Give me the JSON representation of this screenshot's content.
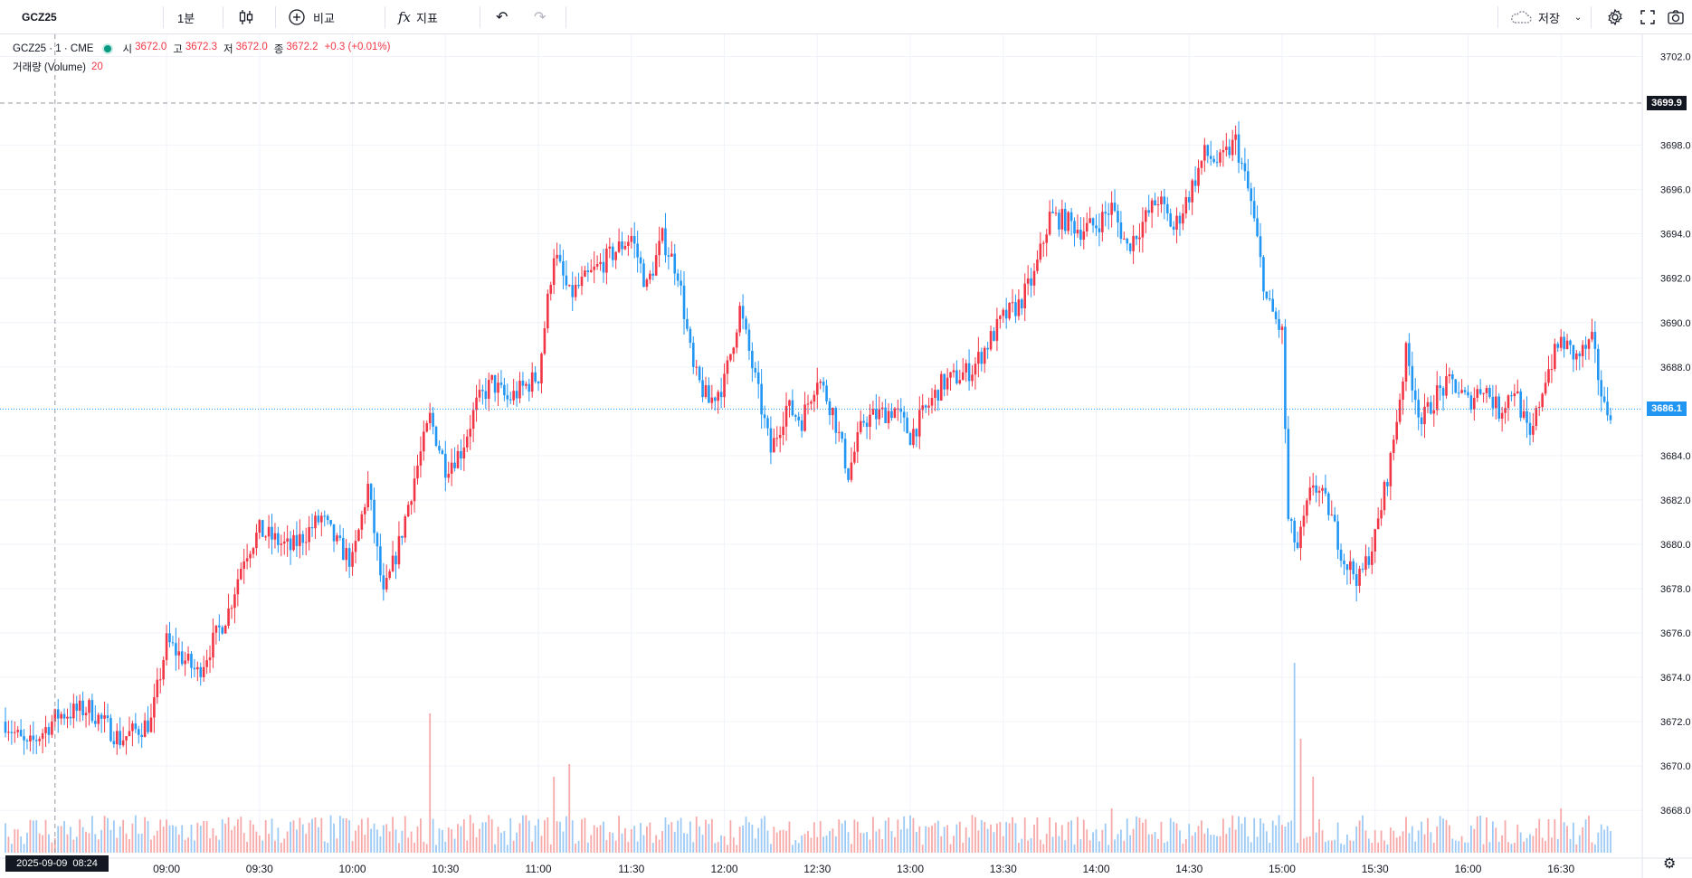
{
  "toolbar": {
    "symbol": "GCZ25",
    "interval": "1분",
    "compare_label": "비교",
    "indicators_label": "지표",
    "save_label": "저장"
  },
  "legend": {
    "title": "GCZ25 · 1 · CME",
    "open_label": "시",
    "open": "3672.0",
    "high_label": "고",
    "high": "3672.3",
    "low_label": "저",
    "low": "3672.0",
    "close_label": "종",
    "close": "3672.2",
    "change": "+0.3 (+0.01%)",
    "volume_label": "거래량 (Volume)",
    "volume_value": "20"
  },
  "crosshair": {
    "price": "3699.9",
    "date": "2025-09-09",
    "time": "08:24"
  },
  "last_price": {
    "price": "3686.1",
    "color": "#2196f3"
  },
  "colors": {
    "up": "#f23645",
    "down": "#2196f3",
    "volume_up": "#f7a9a9",
    "volume_down": "#9ccaf5"
  },
  "chart_data": {
    "type": "candlestick",
    "y_ticks": [
      "3702.0",
      "3698.0",
      "3696.0",
      "3694.0",
      "3692.0",
      "3690.0",
      "3688.0",
      "3684.0",
      "3682.0",
      "3680.0",
      "3678.0",
      "3676.0",
      "3674.0",
      "3672.0",
      "3670.0",
      "3668.0"
    ],
    "x_ticks": [
      "09:00",
      "09:30",
      "10:00",
      "10:30",
      "11:00",
      "11:30",
      "12:00",
      "12:30",
      "13:00",
      "13:30",
      "14:00",
      "14:30",
      "15:00",
      "15:30",
      "16:00",
      "16:30"
    ],
    "ylim": [
      3666.5,
      3703.0
    ],
    "x_range": [
      "08:08",
      "16:46"
    ],
    "price_path": [
      {
        "t": "08:08",
        "p": 3672.0
      },
      {
        "t": "08:15",
        "p": 3670.8
      },
      {
        "t": "08:25",
        "p": 3672.3
      },
      {
        "t": "08:35",
        "p": 3672.6
      },
      {
        "t": "08:45",
        "p": 3671.2
      },
      {
        "t": "08:55",
        "p": 3672.0
      },
      {
        "t": "09:00",
        "p": 3675.6
      },
      {
        "t": "09:10",
        "p": 3674.2
      },
      {
        "t": "09:20",
        "p": 3677.0
      },
      {
        "t": "09:25",
        "p": 3679.5
      },
      {
        "t": "09:30",
        "p": 3680.6
      },
      {
        "t": "09:40",
        "p": 3679.8
      },
      {
        "t": "09:50",
        "p": 3681.2
      },
      {
        "t": "09:55",
        "p": 3680.0
      },
      {
        "t": "10:00",
        "p": 3679.2
      },
      {
        "t": "10:05",
        "p": 3682.6
      },
      {
        "t": "10:10",
        "p": 3677.6
      },
      {
        "t": "10:15",
        "p": 3680.0
      },
      {
        "t": "10:20",
        "p": 3683.0
      },
      {
        "t": "10:25",
        "p": 3685.7
      },
      {
        "t": "10:30",
        "p": 3683.5
      },
      {
        "t": "10:35",
        "p": 3684.2
      },
      {
        "t": "10:40",
        "p": 3686.3
      },
      {
        "t": "10:45",
        "p": 3687.3
      },
      {
        "t": "10:50",
        "p": 3686.5
      },
      {
        "t": "11:00",
        "p": 3687.6
      },
      {
        "t": "11:05",
        "p": 3693.2
      },
      {
        "t": "11:10",
        "p": 3691.2
      },
      {
        "t": "11:20",
        "p": 3692.6
      },
      {
        "t": "11:30",
        "p": 3693.9
      },
      {
        "t": "11:35",
        "p": 3691.6
      },
      {
        "t": "11:40",
        "p": 3693.8
      },
      {
        "t": "11:45",
        "p": 3692.3
      },
      {
        "t": "11:50",
        "p": 3687.8
      },
      {
        "t": "11:55",
        "p": 3686.4
      },
      {
        "t": "12:00",
        "p": 3687.3
      },
      {
        "t": "12:05",
        "p": 3690.6
      },
      {
        "t": "12:10",
        "p": 3687.4
      },
      {
        "t": "12:15",
        "p": 3684.2
      },
      {
        "t": "12:20",
        "p": 3686.2
      },
      {
        "t": "12:25",
        "p": 3685.6
      },
      {
        "t": "12:30",
        "p": 3687.6
      },
      {
        "t": "12:35",
        "p": 3686.0
      },
      {
        "t": "12:40",
        "p": 3683.2
      },
      {
        "t": "12:45",
        "p": 3685.6
      },
      {
        "t": "12:55",
        "p": 3686.1
      },
      {
        "t": "13:00",
        "p": 3684.9
      },
      {
        "t": "13:10",
        "p": 3687.2
      },
      {
        "t": "13:20",
        "p": 3687.9
      },
      {
        "t": "13:30",
        "p": 3690.2
      },
      {
        "t": "13:35",
        "p": 3690.8
      },
      {
        "t": "13:40",
        "p": 3692.1
      },
      {
        "t": "13:45",
        "p": 3694.8
      },
      {
        "t": "13:50",
        "p": 3694.6
      },
      {
        "t": "13:55",
        "p": 3694.2
      },
      {
        "t": "14:00",
        "p": 3694.4
      },
      {
        "t": "14:05",
        "p": 3695.2
      },
      {
        "t": "14:10",
        "p": 3693.4
      },
      {
        "t": "14:15",
        "p": 3694.5
      },
      {
        "t": "14:20",
        "p": 3695.6
      },
      {
        "t": "14:25",
        "p": 3694.2
      },
      {
        "t": "14:30",
        "p": 3695.8
      },
      {
        "t": "14:35",
        "p": 3697.6
      },
      {
        "t": "14:40",
        "p": 3697.2
      },
      {
        "t": "14:45",
        "p": 3698.2
      },
      {
        "t": "14:50",
        "p": 3695.4
      },
      {
        "t": "14:55",
        "p": 3691.0
      },
      {
        "t": "15:00",
        "p": 3689.5
      },
      {
        "t": "15:02",
        "p": 3681.0
      },
      {
        "t": "15:05",
        "p": 3679.8
      },
      {
        "t": "15:10",
        "p": 3682.8
      },
      {
        "t": "15:15",
        "p": 3681.6
      },
      {
        "t": "15:20",
        "p": 3679.3
      },
      {
        "t": "15:25",
        "p": 3678.4
      },
      {
        "t": "15:30",
        "p": 3680.3
      },
      {
        "t": "15:35",
        "p": 3683.8
      },
      {
        "t": "15:40",
        "p": 3688.6
      },
      {
        "t": "15:45",
        "p": 3685.5
      },
      {
        "t": "15:50",
        "p": 3686.8
      },
      {
        "t": "15:55",
        "p": 3687.3
      },
      {
        "t": "16:00",
        "p": 3686.4
      },
      {
        "t": "16:05",
        "p": 3687.2
      },
      {
        "t": "16:10",
        "p": 3686.0
      },
      {
        "t": "16:15",
        "p": 3687.1
      },
      {
        "t": "16:20",
        "p": 3684.6
      },
      {
        "t": "16:25",
        "p": 3687.6
      },
      {
        "t": "16:30",
        "p": 3689.2
      },
      {
        "t": "16:35",
        "p": 3688.4
      },
      {
        "t": "16:40",
        "p": 3689.1
      },
      {
        "t": "16:44",
        "p": 3686.1
      }
    ],
    "volume_spikes": [
      {
        "t": "10:25",
        "v": 11
      },
      {
        "t": "11:10",
        "v": 7
      },
      {
        "t": "11:05",
        "v": 6
      },
      {
        "t": "15:04",
        "v": 15
      },
      {
        "t": "15:06",
        "v": 9
      },
      {
        "t": "15:10",
        "v": 6
      },
      {
        "t": "14:05",
        "v": 3.5
      },
      {
        "t": "16:30",
        "v": 3.5
      }
    ]
  }
}
